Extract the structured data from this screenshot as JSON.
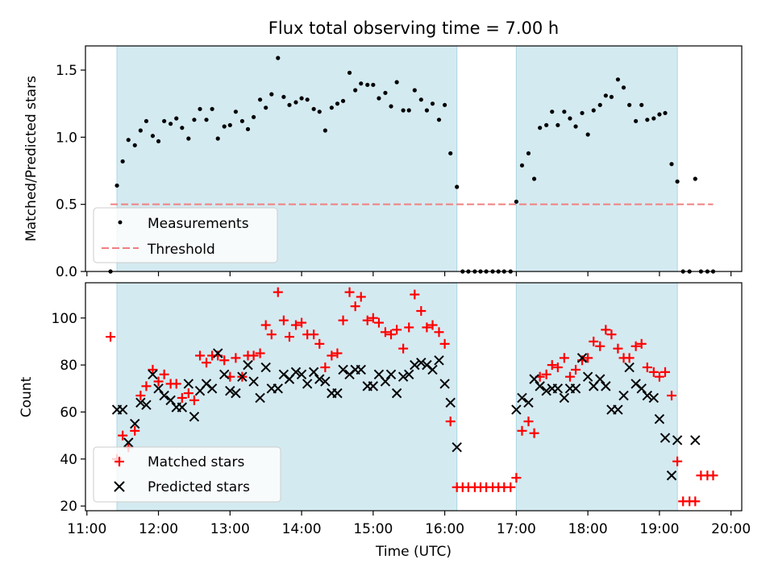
{
  "chart_data": [
    {
      "type": "scatter",
      "title": "Flux total observing time = 7.00 h",
      "ylabel": "Matched/Predicted stars",
      "xlabel": "",
      "ylim": [
        0,
        1.68
      ],
      "yticks": [
        0.0,
        0.5,
        1.0,
        1.5
      ],
      "yticklabels": [
        "0.0",
        "0.5",
        "1.0",
        "1.5"
      ],
      "shaded_intervals": [
        [
          11.42,
          16.17
        ],
        [
          17.0,
          19.25
        ]
      ],
      "threshold": {
        "y": 0.5,
        "x_range": [
          11.33,
          19.75
        ]
      },
      "legend": {
        "position": "lower-left",
        "entries": [
          "Measurements",
          "Threshold"
        ]
      },
      "series": [
        {
          "name": "Measurements",
          "marker": "dot",
          "color": "#000000",
          "x": [
            11.33,
            11.42,
            11.5,
            11.58,
            11.67,
            11.75,
            11.83,
            11.92,
            12.0,
            12.08,
            12.17,
            12.25,
            12.33,
            12.42,
            12.5,
            12.58,
            12.67,
            12.75,
            12.83,
            12.92,
            13.0,
            13.08,
            13.17,
            13.25,
            13.33,
            13.42,
            13.5,
            13.58,
            13.67,
            13.75,
            13.83,
            13.92,
            14.0,
            14.08,
            14.17,
            14.25,
            14.33,
            14.42,
            14.5,
            14.58,
            14.67,
            14.75,
            14.83,
            14.92,
            15.0,
            15.08,
            15.17,
            15.25,
            15.33,
            15.42,
            15.5,
            15.58,
            15.67,
            15.75,
            15.83,
            15.92,
            16.0,
            16.08,
            16.17,
            16.25,
            16.33,
            16.42,
            16.5,
            16.58,
            16.67,
            16.75,
            16.83,
            16.92,
            17.0,
            17.08,
            17.17,
            17.25,
            17.33,
            17.42,
            17.5,
            17.58,
            17.67,
            17.75,
            17.83,
            17.92,
            18.0,
            18.08,
            18.17,
            18.25,
            18.33,
            18.42,
            18.5,
            18.58,
            18.67,
            18.75,
            18.83,
            18.92,
            19.0,
            19.08,
            19.17,
            19.25,
            19.33,
            19.42,
            19.5,
            19.58,
            19.67,
            19.75
          ],
          "y": [
            0.0,
            0.64,
            0.82,
            0.98,
            0.94,
            1.05,
            1.12,
            1.01,
            0.97,
            1.12,
            1.1,
            1.14,
            1.07,
            0.99,
            1.13,
            1.21,
            1.13,
            1.21,
            0.99,
            1.08,
            1.09,
            1.19,
            1.12,
            1.06,
            1.15,
            1.28,
            1.22,
            1.32,
            1.59,
            1.3,
            1.24,
            1.26,
            1.29,
            1.28,
            1.21,
            1.19,
            1.05,
            1.22,
            1.25,
            1.27,
            1.48,
            1.35,
            1.4,
            1.39,
            1.39,
            1.29,
            1.33,
            1.23,
            1.41,
            1.2,
            1.2,
            1.35,
            1.28,
            1.2,
            1.25,
            1.13,
            1.24,
            0.88,
            0.63,
            0.0,
            0.0,
            0.0,
            0.0,
            0.0,
            0.0,
            0.0,
            0.0,
            0.0,
            0.52,
            0.79,
            0.88,
            0.69,
            1.07,
            1.09,
            1.19,
            1.09,
            1.19,
            1.14,
            1.08,
            1.18,
            1.02,
            1.2,
            1.24,
            1.31,
            1.3,
            1.43,
            1.37,
            1.24,
            1.12,
            1.24,
            1.13,
            1.14,
            1.17,
            1.18,
            0.8,
            0.67,
            0.0,
            0.0,
            0.69,
            0.0,
            0.0,
            0.0
          ]
        }
      ]
    },
    {
      "type": "scatter",
      "xlabel": "Time (UTC)",
      "ylabel": "Count",
      "ylim": [
        18,
        115
      ],
      "yticks": [
        20,
        40,
        60,
        80,
        100
      ],
      "yticklabels": [
        "20",
        "40",
        "60",
        "80",
        "100"
      ],
      "xlim": [
        10.98,
        20.15
      ],
      "xticks": [
        11,
        12,
        13,
        14,
        15,
        16,
        17,
        18,
        19,
        20
      ],
      "xticklabels": [
        "11:00",
        "12:00",
        "13:00",
        "14:00",
        "15:00",
        "16:00",
        "17:00",
        "18:00",
        "19:00",
        "20:00"
      ],
      "shaded_intervals": [
        [
          11.42,
          16.17
        ],
        [
          17.0,
          19.25
        ]
      ],
      "legend": {
        "position": "lower-left",
        "entries": [
          "Matched stars",
          "Predicted stars"
        ]
      },
      "series": [
        {
          "name": "Matched stars",
          "marker": "plus",
          "color": "#ff0000",
          "x": [
            11.33,
            11.42,
            11.5,
            11.58,
            11.67,
            11.75,
            11.83,
            11.92,
            12.0,
            12.08,
            12.17,
            12.25,
            12.33,
            12.42,
            12.5,
            12.58,
            12.67,
            12.75,
            12.83,
            12.92,
            13.0,
            13.08,
            13.17,
            13.25,
            13.33,
            13.42,
            13.5,
            13.58,
            13.67,
            13.75,
            13.83,
            13.92,
            14.0,
            14.08,
            14.17,
            14.25,
            14.33,
            14.42,
            14.5,
            14.58,
            14.67,
            14.75,
            14.83,
            14.92,
            15.0,
            15.08,
            15.17,
            15.25,
            15.33,
            15.42,
            15.5,
            15.58,
            15.67,
            15.75,
            15.83,
            15.92,
            16.0,
            16.08,
            16.17,
            16.25,
            16.33,
            16.42,
            16.5,
            16.58,
            16.67,
            16.75,
            16.83,
            16.92,
            17.0,
            17.08,
            17.17,
            17.25,
            17.33,
            17.42,
            17.5,
            17.58,
            17.67,
            17.75,
            17.83,
            17.92,
            18.0,
            18.08,
            18.17,
            18.25,
            18.33,
            18.42,
            18.5,
            18.58,
            18.67,
            18.75,
            18.83,
            18.92,
            19.0,
            19.08,
            19.17,
            19.25,
            19.33,
            19.42,
            19.5,
            19.58,
            19.67,
            19.75
          ],
          "y": [
            92,
            40,
            50,
            45,
            52,
            67,
            71,
            78,
            73,
            76,
            72,
            72,
            66,
            68,
            65,
            84,
            81,
            84,
            84,
            82,
            75,
            83,
            75,
            84,
            84,
            85,
            97,
            93,
            111,
            99,
            92,
            97,
            98,
            93,
            93,
            89,
            79,
            84,
            85,
            99,
            111,
            105,
            109,
            99,
            100,
            98,
            94,
            93,
            95,
            87,
            96,
            110,
            103,
            96,
            97,
            94,
            89,
            56,
            28,
            28,
            28,
            28,
            28,
            28,
            28,
            28,
            28,
            28,
            32,
            52,
            56,
            51,
            75,
            76,
            80,
            79,
            83,
            75,
            78,
            82,
            83,
            90,
            88,
            95,
            93,
            87,
            83,
            83,
            88,
            89,
            79,
            77,
            75,
            77,
            67,
            39,
            22,
            22,
            22,
            33,
            33,
            33
          ]
        },
        {
          "name": "Predicted stars",
          "marker": "x",
          "color": "#000000",
          "x": [
            11.42,
            11.5,
            11.58,
            11.67,
            11.75,
            11.83,
            11.92,
            12.0,
            12.08,
            12.17,
            12.25,
            12.33,
            12.42,
            12.5,
            12.58,
            12.67,
            12.75,
            12.83,
            12.92,
            13.0,
            13.08,
            13.17,
            13.25,
            13.33,
            13.42,
            13.5,
            13.58,
            13.67,
            13.75,
            13.83,
            13.92,
            14.0,
            14.08,
            14.17,
            14.25,
            14.33,
            14.42,
            14.5,
            14.58,
            14.67,
            14.75,
            14.83,
            14.92,
            15.0,
            15.08,
            15.17,
            15.25,
            15.33,
            15.42,
            15.5,
            15.58,
            15.67,
            15.75,
            15.83,
            15.92,
            16.0,
            16.08,
            16.17,
            17.0,
            17.08,
            17.17,
            17.25,
            17.33,
            17.42,
            17.5,
            17.58,
            17.67,
            17.75,
            17.83,
            17.92,
            18.0,
            18.08,
            18.17,
            18.25,
            18.33,
            18.42,
            18.5,
            18.58,
            18.67,
            18.75,
            18.83,
            18.92,
            19.0,
            19.08,
            19.17,
            19.25,
            19.5
          ],
          "y": [
            61,
            61,
            47,
            55,
            64,
            63,
            76,
            70,
            67,
            65,
            62,
            62,
            72,
            58,
            69,
            72,
            70,
            85,
            76,
            69,
            68,
            75,
            80,
            73,
            66,
            79,
            70,
            70,
            76,
            74,
            77,
            76,
            72,
            77,
            74,
            73,
            68,
            68,
            78,
            76,
            78,
            78,
            71,
            71,
            76,
            73,
            76,
            68,
            75,
            76,
            80,
            81,
            80,
            78,
            82,
            72,
            64,
            45,
            61,
            66,
            64,
            74,
            71,
            69,
            70,
            70,
            66,
            70,
            70,
            83,
            75,
            71,
            74,
            71,
            61,
            61,
            67,
            79,
            72,
            70,
            67,
            66,
            57,
            49,
            33,
            48,
            48
          ]
        }
      ]
    }
  ]
}
